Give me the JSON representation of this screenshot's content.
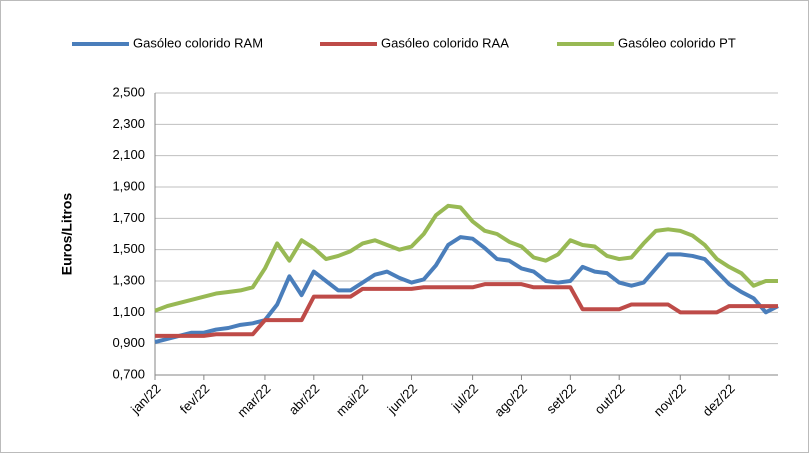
{
  "chart_data": {
    "type": "line",
    "y_label": "Euros/Litros",
    "categories": [
      "jan/22",
      null,
      null,
      null,
      "fev/22",
      null,
      null,
      null,
      null,
      "mar/22",
      null,
      null,
      null,
      "abr/22",
      null,
      null,
      null,
      "mai/22",
      null,
      null,
      null,
      "jun/22",
      null,
      null,
      null,
      null,
      "jul/22",
      null,
      null,
      null,
      "ago/22",
      null,
      null,
      null,
      "set/22",
      null,
      null,
      null,
      "out/22",
      null,
      null,
      null,
      null,
      "nov/22",
      null,
      null,
      null,
      "dez/22",
      null,
      null,
      null,
      null
    ],
    "series": [
      {
        "name": "Gasóleo colorido RAM",
        "color": "#4a7ebb",
        "values": [
          0.91,
          0.93,
          0.95,
          0.97,
          0.97,
          0.99,
          1.0,
          1.02,
          1.03,
          1.05,
          1.15,
          1.33,
          1.21,
          1.36,
          1.3,
          1.24,
          1.24,
          1.29,
          1.34,
          1.36,
          1.32,
          1.29,
          1.31,
          1.4,
          1.53,
          1.58,
          1.57,
          1.51,
          1.44,
          1.43,
          1.38,
          1.36,
          1.3,
          1.29,
          1.3,
          1.39,
          1.36,
          1.35,
          1.29,
          1.27,
          1.29,
          1.38,
          1.47,
          1.47,
          1.46,
          1.44,
          1.36,
          1.28,
          1.23,
          1.19,
          1.1,
          1.14
        ]
      },
      {
        "name": "Gasóleo colorido RAA",
        "color": "#be4b48",
        "values": [
          0.95,
          0.95,
          0.95,
          0.95,
          0.95,
          0.96,
          0.96,
          0.96,
          0.96,
          1.05,
          1.05,
          1.05,
          1.05,
          1.2,
          1.2,
          1.2,
          1.2,
          1.25,
          1.25,
          1.25,
          1.25,
          1.25,
          1.26,
          1.26,
          1.26,
          1.26,
          1.26,
          1.28,
          1.28,
          1.28,
          1.28,
          1.26,
          1.26,
          1.26,
          1.26,
          1.12,
          1.12,
          1.12,
          1.12,
          1.15,
          1.15,
          1.15,
          1.15,
          1.1,
          1.1,
          1.1,
          1.1,
          1.14,
          1.14,
          1.14,
          1.14,
          1.14
        ]
      },
      {
        "name": "Gasóleo colorido PT",
        "color": "#98b954",
        "values": [
          1.11,
          1.14,
          1.16,
          1.18,
          1.2,
          1.22,
          1.23,
          1.24,
          1.26,
          1.38,
          1.54,
          1.43,
          1.56,
          1.51,
          1.44,
          1.46,
          1.49,
          1.54,
          1.56,
          1.53,
          1.5,
          1.52,
          1.6,
          1.72,
          1.78,
          1.77,
          1.68,
          1.62,
          1.6,
          1.55,
          1.52,
          1.45,
          1.43,
          1.47,
          1.56,
          1.53,
          1.52,
          1.46,
          1.44,
          1.45,
          1.54,
          1.62,
          1.63,
          1.62,
          1.59,
          1.53,
          1.44,
          1.39,
          1.35,
          1.27,
          1.3,
          1.3
        ]
      }
    ],
    "ylim": [
      0.7,
      2.5
    ],
    "yticks": [
      {
        "value": 0.7,
        "label": "0,700"
      },
      {
        "value": 0.9,
        "label": "0,900"
      },
      {
        "value": 1.1,
        "label": "1,100"
      },
      {
        "value": 1.3,
        "label": "1,300"
      },
      {
        "value": 1.5,
        "label": "1,500"
      },
      {
        "value": 1.7,
        "label": "1,700"
      },
      {
        "value": 1.9,
        "label": "1,900"
      },
      {
        "value": 2.1,
        "label": "2,100"
      },
      {
        "value": 2.3,
        "label": "2,300"
      },
      {
        "value": 2.5,
        "label": "2,500"
      }
    ],
    "grid": true
  }
}
